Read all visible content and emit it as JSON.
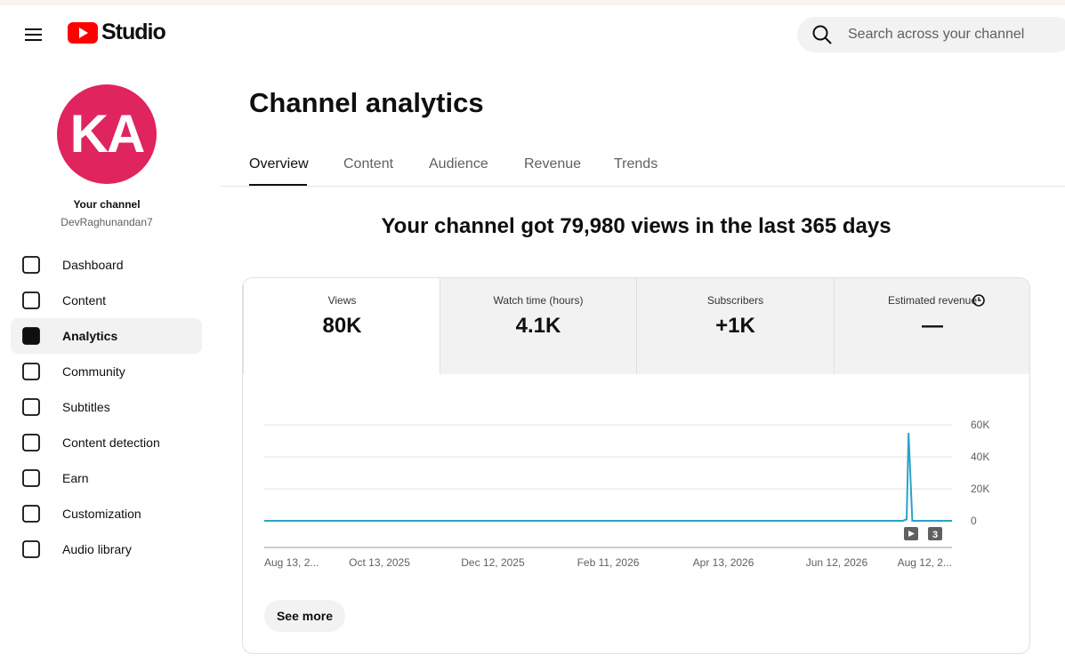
{
  "header": {
    "logo": "Studio",
    "search_placeholder": "Search across your channel"
  },
  "sidebar": {
    "avatar": "KA",
    "channel_label": "Your channel",
    "channel_name": "DevRaghunandan7",
    "nav": [
      "Dashboard",
      "Content",
      "Analytics",
      "Community",
      "Subtitles",
      "Content detection",
      "Earn",
      "Customization",
      "Audio library"
    ],
    "active": "Analytics"
  },
  "main": {
    "title": "Channel analytics",
    "tabs": [
      "Overview",
      "Content",
      "Audience",
      "Revenue",
      "Trends"
    ],
    "active_tab": "Overview",
    "headline": "Your channel got 79,980 views in the last 365 days",
    "metrics": [
      {
        "label": "Views",
        "value": "80K"
      },
      {
        "label": "Watch time (hours)",
        "value": "4.1K"
      },
      {
        "label": "Subscribers",
        "value": "+1K"
      },
      {
        "label": "Estimated revenue",
        "value": "—"
      }
    ],
    "see_more": "See more"
  },
  "chart_data": {
    "type": "line",
    "color": "#2ba3c9",
    "x": [
      "2025-08-13",
      "2026-07-17",
      "2026-07-19",
      "2026-07-20",
      "2026-07-22",
      "2026-08-12"
    ],
    "values": [
      0,
      0,
      1000,
      55000,
      0,
      0
    ],
    "xlim": [
      "2025-08-13",
      "2026-08-12"
    ],
    "xticks": [
      {
        "value": "2025-08-13",
        "label": "Aug 13, 2..."
      },
      {
        "value": "2025-10-13",
        "label": "Oct 13, 2025"
      },
      {
        "value": "2025-12-12",
        "label": "Dec 12, 2025"
      },
      {
        "value": "2026-02-11",
        "label": "Feb 11, 2026"
      },
      {
        "value": "2026-04-13",
        "label": "Apr 13, 2026"
      },
      {
        "value": "2026-06-12",
        "label": "Jun 12, 2026"
      },
      {
        "value": "2026-08-12",
        "label": "Aug 12, 2..."
      }
    ],
    "ylim": [
      0,
      60000
    ],
    "yticks": [
      0,
      {
        "value": 20000,
        "label": "20K"
      },
      {
        "value": 40000,
        "label": "40K"
      },
      {
        "value": 60000,
        "label": "60K"
      }
    ],
    "grid": true,
    "marker_count": "3"
  }
}
